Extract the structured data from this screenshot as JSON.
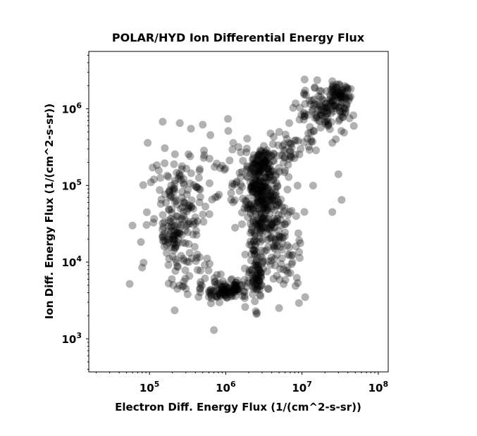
{
  "chart_data": {
    "type": "scatter",
    "title": "POLAR/HYD  Ion Differential Energy Flux",
    "xlabel": "Electron Diff. Energy Flux (1/(cm^2-s-sr))",
    "ylabel": "Ion Diff. Energy Flux (1/(cm^2-s-sr))",
    "xscale": "log",
    "yscale": "log",
    "xlim": [
      16000,
      135000000
    ],
    "ylim": [
      370,
      5600000
    ],
    "xticks": [
      {
        "value": 100000,
        "base": "10",
        "exp": "5"
      },
      {
        "value": 1000000,
        "base": "10",
        "exp": "6"
      },
      {
        "value": 10000000,
        "base": "10",
        "exp": "7"
      },
      {
        "value": 100000000,
        "base": "10",
        "exp": "8"
      }
    ],
    "yticks": [
      {
        "value": 1000,
        "base": "10",
        "exp": "3"
      },
      {
        "value": 10000,
        "base": "10",
        "exp": "4"
      },
      {
        "value": 100000,
        "base": "10",
        "exp": "5"
      },
      {
        "value": 1000000,
        "base": "10",
        "exp": "6"
      }
    ],
    "grid": false,
    "marker_color": "#000000",
    "marker_alpha": 0.3,
    "clusters": [
      {
        "x_center": 3000000,
        "y_center": 70000,
        "x_spread": 0.11,
        "y_spread": 0.28,
        "count": 260
      },
      {
        "x_center": 2900000,
        "y_center": 200000,
        "x_spread": 0.07,
        "y_spread": 0.08,
        "count": 60
      },
      {
        "x_center": 2500000,
        "y_center": 8000,
        "x_spread": 0.06,
        "y_spread": 0.22,
        "count": 90
      },
      {
        "x_center": 1000000,
        "y_center": 4300,
        "x_spread": 0.16,
        "y_spread": 0.07,
        "count": 120
      },
      {
        "x_center": 20000000,
        "y_center": 900000,
        "x_spread": 0.18,
        "y_spread": 0.15,
        "count": 120
      },
      {
        "x_center": 30000000,
        "y_center": 1500000,
        "x_spread": 0.08,
        "y_spread": 0.07,
        "count": 60
      },
      {
        "x_center": 7000000,
        "y_center": 300000,
        "x_spread": 0.16,
        "y_spread": 0.15,
        "count": 45
      },
      {
        "x_center": 250000,
        "y_center": 50000,
        "x_spread": 0.2,
        "y_spread": 0.4,
        "count": 160
      },
      {
        "x_center": 200000,
        "y_center": 22000,
        "x_spread": 0.08,
        "y_spread": 0.08,
        "count": 35
      },
      {
        "x_center": 5000000,
        "y_center": 30000,
        "x_spread": 0.18,
        "y_spread": 0.3,
        "count": 80
      },
      {
        "x_center": 1200000,
        "y_center": 120000,
        "x_spread": 0.28,
        "y_spread": 0.3,
        "count": 55
      },
      {
        "x_center": 6000000,
        "y_center": 8000,
        "x_spread": 0.1,
        "y_spread": 0.18,
        "count": 30
      },
      {
        "x_center": 300000,
        "y_center": 7000,
        "x_spread": 0.15,
        "y_spread": 0.15,
        "count": 25
      }
    ],
    "outliers": [
      {
        "x": 250000,
        "y": 650000
      },
      {
        "x": 350000,
        "y": 550000
      },
      {
        "x": 500000,
        "y": 620000
      },
      {
        "x": 700000,
        "y": 1300
      },
      {
        "x": 55000,
        "y": 5200
      },
      {
        "x": 60000,
        "y": 30000
      },
      {
        "x": 80000,
        "y": 8500
      },
      {
        "x": 30000000,
        "y": 140000
      },
      {
        "x": 33000000,
        "y": 65000
      },
      {
        "x": 25000000,
        "y": 45000
      },
      {
        "x": 11000000,
        "y": 3500
      },
      {
        "x": 1800000,
        "y": 2600
      }
    ]
  }
}
